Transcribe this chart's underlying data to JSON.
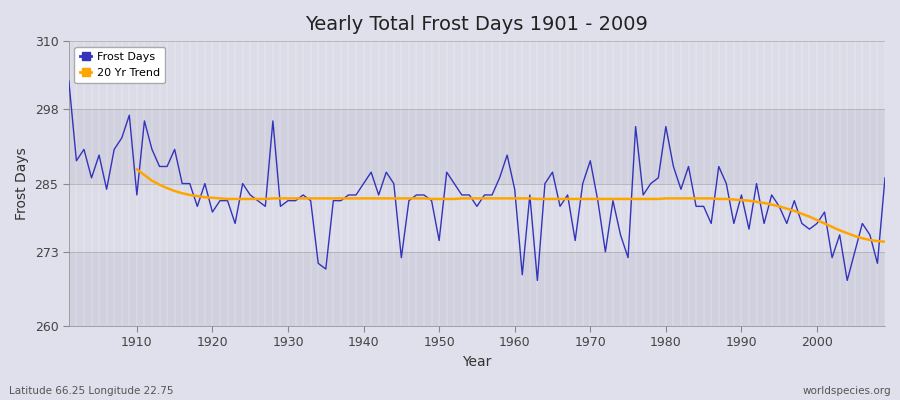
{
  "title": "Yearly Total Frost Days 1901 - 2009",
  "xlabel": "Year",
  "ylabel": "Frost Days",
  "footnote_left": "Latitude 66.25 Longitude 22.75",
  "footnote_right": "worldspecies.org",
  "legend_entries": [
    "Frost Days",
    "20 Yr Trend"
  ],
  "legend_colors": [
    "#3333bb",
    "#ffa500"
  ],
  "ylim": [
    260,
    310
  ],
  "xlim": [
    1901,
    2009
  ],
  "yticks": [
    260,
    273,
    285,
    298,
    310
  ],
  "xticks": [
    1910,
    1920,
    1930,
    1940,
    1950,
    1960,
    1970,
    1980,
    1990,
    2000
  ],
  "bg_color": "#d8d8e8",
  "plot_bg": "#dcdce8",
  "line_color": "#3333bb",
  "trend_color": "#ffa500",
  "years": [
    1901,
    1902,
    1903,
    1904,
    1905,
    1906,
    1907,
    1908,
    1909,
    1910,
    1911,
    1912,
    1913,
    1914,
    1915,
    1916,
    1917,
    1918,
    1919,
    1920,
    1921,
    1922,
    1923,
    1924,
    1925,
    1926,
    1927,
    1928,
    1929,
    1930,
    1931,
    1932,
    1933,
    1934,
    1935,
    1936,
    1937,
    1938,
    1939,
    1940,
    1941,
    1942,
    1943,
    1944,
    1945,
    1946,
    1947,
    1948,
    1949,
    1950,
    1951,
    1952,
    1953,
    1954,
    1955,
    1956,
    1957,
    1958,
    1959,
    1960,
    1961,
    1962,
    1963,
    1964,
    1965,
    1966,
    1967,
    1968,
    1969,
    1970,
    1971,
    1972,
    1973,
    1974,
    1975,
    1976,
    1977,
    1978,
    1979,
    1980,
    1981,
    1982,
    1983,
    1984,
    1985,
    1986,
    1987,
    1988,
    1989,
    1990,
    1991,
    1992,
    1993,
    1994,
    1995,
    1996,
    1997,
    1998,
    1999,
    2000,
    2001,
    2002,
    2003,
    2004,
    2005,
    2006,
    2007,
    2008,
    2009
  ],
  "frost_days": [
    303,
    289,
    291,
    286,
    290,
    284,
    291,
    293,
    297,
    283,
    296,
    291,
    288,
    288,
    291,
    285,
    285,
    281,
    285,
    280,
    282,
    282,
    278,
    285,
    283,
    282,
    281,
    296,
    281,
    282,
    282,
    283,
    282,
    271,
    270,
    282,
    282,
    283,
    283,
    285,
    287,
    283,
    287,
    285,
    272,
    282,
    283,
    283,
    282,
    275,
    287,
    285,
    283,
    283,
    281,
    283,
    283,
    286,
    290,
    284,
    269,
    283,
    268,
    285,
    287,
    281,
    283,
    275,
    285,
    289,
    282,
    273,
    282,
    276,
    272,
    295,
    283,
    285,
    286,
    295,
    288,
    284,
    288,
    281,
    281,
    278,
    288,
    285,
    278,
    283,
    277,
    285,
    278,
    283,
    281,
    278,
    282,
    278,
    277,
    278,
    280,
    272,
    276,
    268,
    273,
    278,
    276,
    271,
    286
  ],
  "trend_years": [
    1910,
    1911,
    1912,
    1913,
    1914,
    1915,
    1916,
    1917,
    1918,
    1919,
    1920,
    1921,
    1922,
    1923,
    1924,
    1925,
    1926,
    1927,
    1928,
    1929,
    1930,
    1931,
    1932,
    1933,
    1934,
    1935,
    1936,
    1937,
    1938,
    1939,
    1940,
    1941,
    1942,
    1943,
    1944,
    1945,
    1946,
    1947,
    1948,
    1949,
    1950,
    1951,
    1952,
    1953,
    1954,
    1955,
    1956,
    1957,
    1958,
    1959,
    1960,
    1961,
    1962,
    1963,
    1964,
    1965,
    1966,
    1967,
    1968,
    1969,
    1970,
    1971,
    1972,
    1973,
    1974,
    1975,
    1976,
    1977,
    1978,
    1979,
    1980,
    1981,
    1982,
    1983,
    1984,
    1985,
    1986,
    1987,
    1988,
    1989,
    1990,
    1991,
    1992,
    1993,
    1994,
    1995,
    1996,
    1997,
    1998,
    1999,
    2000,
    2001,
    2002,
    2003,
    2004,
    2005,
    2006,
    2007,
    2008,
    2009
  ],
  "trend_values": [
    287.5,
    286.5,
    285.5,
    284.8,
    284.2,
    283.7,
    283.3,
    283.0,
    282.8,
    282.6,
    282.5,
    282.4,
    282.3,
    282.3,
    282.3,
    282.3,
    282.3,
    282.3,
    282.4,
    282.4,
    282.4,
    282.4,
    282.4,
    282.4,
    282.4,
    282.4,
    282.4,
    282.4,
    282.4,
    282.4,
    282.4,
    282.4,
    282.4,
    282.4,
    282.4,
    282.4,
    282.4,
    282.4,
    282.4,
    282.3,
    282.3,
    282.3,
    282.3,
    282.4,
    282.4,
    282.4,
    282.4,
    282.4,
    282.4,
    282.4,
    282.4,
    282.4,
    282.4,
    282.3,
    282.3,
    282.3,
    282.3,
    282.3,
    282.3,
    282.3,
    282.3,
    282.3,
    282.3,
    282.3,
    282.3,
    282.3,
    282.3,
    282.3,
    282.3,
    282.3,
    282.4,
    282.4,
    282.4,
    282.4,
    282.4,
    282.4,
    282.4,
    282.3,
    282.3,
    282.2,
    282.1,
    282.0,
    281.8,
    281.6,
    281.3,
    281.0,
    280.6,
    280.2,
    279.7,
    279.2,
    278.6,
    278.0,
    277.4,
    276.8,
    276.3,
    275.8,
    275.4,
    275.1,
    274.9,
    274.8
  ]
}
